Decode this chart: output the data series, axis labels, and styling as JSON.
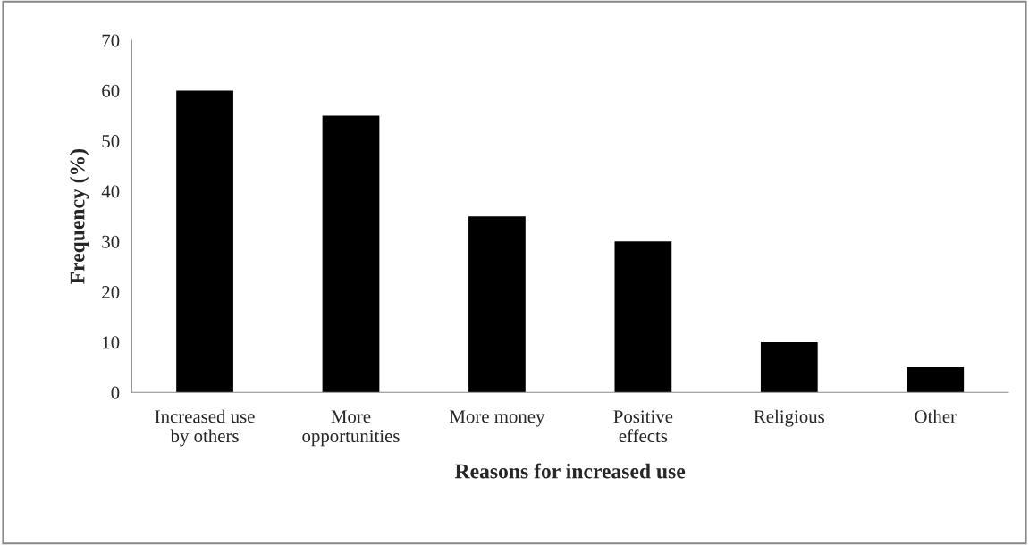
{
  "chart_data": {
    "type": "bar",
    "xlabel": "Reasons for increased use",
    "ylabel": "Frequency (%)",
    "categories": [
      "Increased use\nby others",
      "More\nopportunities",
      "More money",
      "Positive\neffects",
      "Religious",
      "Other"
    ],
    "values": [
      60,
      55,
      35,
      30,
      10,
      5
    ],
    "color": "#000000",
    "ylim": [
      0,
      70
    ],
    "yticks": [
      0,
      10,
      20,
      30,
      40,
      50,
      60,
      70
    ]
  }
}
